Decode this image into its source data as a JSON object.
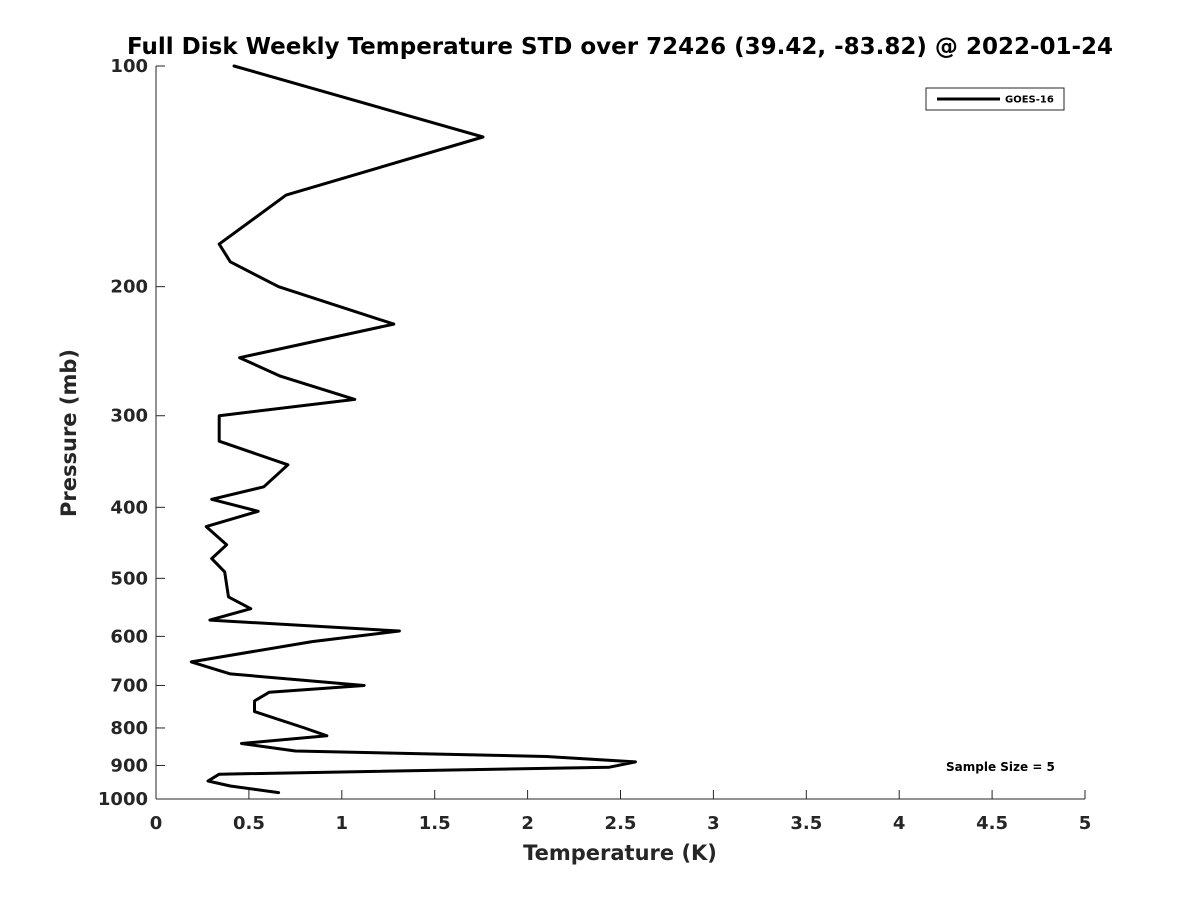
{
  "chart_data": {
    "type": "line",
    "title": "Full Disk Weekly Temperature STD over 72426 (39.42, -83.82) @ 2022-01-24",
    "xlabel": "Temperature (K)",
    "ylabel": "Pressure (mb)",
    "xlim": [
      0,
      5
    ],
    "ylim": [
      100,
      1000
    ],
    "y_scale": "log",
    "y_reversed": true,
    "grid": false,
    "x_ticks": [
      0,
      0.5,
      1,
      1.5,
      2,
      2.5,
      3,
      3.5,
      4,
      4.5,
      5
    ],
    "x_tick_labels": [
      "0",
      "0.5",
      "1",
      "1.5",
      "2",
      "2.5",
      "3",
      "3.5",
      "4",
      "4.5",
      "5"
    ],
    "y_ticks": [
      100,
      200,
      300,
      400,
      500,
      600,
      700,
      800,
      900,
      1000
    ],
    "y_tick_labels": [
      "100",
      "200",
      "300",
      "400",
      "500",
      "600",
      "700",
      "800",
      "900",
      "1000"
    ],
    "legend": {
      "placement": "top-right",
      "entries": [
        "GOES-16"
      ]
    },
    "annotation": "Sample Size = 5",
    "series": [
      {
        "name": "GOES-16",
        "color": "#000000",
        "x": [
          0.42,
          1.76,
          0.7,
          0.34,
          0.4,
          0.66,
          1.28,
          0.45,
          0.67,
          1.07,
          0.34,
          0.34,
          0.71,
          0.58,
          0.3,
          0.55,
          0.27,
          0.38,
          0.3,
          0.37,
          0.38,
          0.39,
          0.51,
          0.29,
          1.31,
          0.84,
          0.19,
          0.4,
          1.12,
          0.61,
          0.53,
          0.53,
          0.8,
          0.92,
          0.46,
          0.75,
          2.1,
          2.58,
          2.44,
          0.34,
          0.28,
          0.4,
          0.66
        ],
        "y": [
          100,
          125,
          150,
          175,
          185,
          200,
          225,
          250,
          265,
          285,
          300,
          325,
          350,
          375,
          390,
          405,
          425,
          450,
          470,
          490,
          510,
          530,
          550,
          570,
          590,
          610,
          650,
          675,
          700,
          715,
          735,
          760,
          800,
          820,
          840,
          860,
          875,
          890,
          905,
          925,
          945,
          960,
          980
        ]
      }
    ]
  }
}
